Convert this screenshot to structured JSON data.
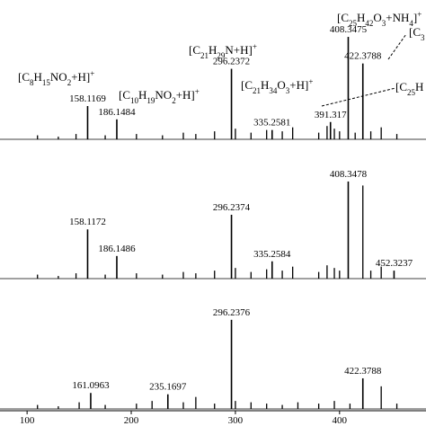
{
  "chart_data": [
    {
      "type": "spectrum",
      "xlim": [
        74,
        483
      ],
      "ylim": [
        0,
        100
      ],
      "peaks": {
        "x": [
          158.1169,
          186.1484,
          296.2372,
          335.2581,
          391.317,
          408.3475,
          422.3788
        ],
        "values": [
          25,
          15,
          53,
          7,
          13,
          77,
          57
        ]
      },
      "other_peaks": {
        "x": [
          110,
          130,
          147,
          175,
          205,
          230,
          250,
          262,
          280,
          300,
          315,
          330,
          345,
          355,
          380,
          388,
          395,
          400,
          415,
          430,
          440,
          455
        ],
        "values": [
          3,
          2,
          4,
          3,
          4,
          3,
          5,
          4,
          6,
          8,
          5,
          7,
          6,
          9,
          5,
          10,
          8,
          6,
          5,
          6,
          9,
          4
        ]
      },
      "annotations": [
        "[C8H15NO2+H]+",
        "[C10H19NO2+H]+",
        "[C21H29N+H]+",
        "[C21H34O3+H]+",
        "[C25H42O3+NH4]+",
        "[C3",
        "[C25H"
      ]
    },
    {
      "type": "spectrum",
      "xlim": [
        74,
        483
      ],
      "ylim": [
        0,
        100
      ],
      "peaks": {
        "x": [
          158.1172,
          186.1486,
          296.2374,
          335.2584,
          408.3478,
          452.3237
        ],
        "values": [
          37,
          17,
          48,
          13,
          73,
          6
        ]
      },
      "other_peaks": {
        "x": [
          110,
          130,
          147,
          175,
          205,
          230,
          250,
          262,
          280,
          300,
          315,
          330,
          345,
          355,
          380,
          388,
          395,
          400,
          422.3788,
          430,
          440
        ],
        "values": [
          3,
          2,
          4,
          3,
          4,
          3,
          5,
          4,
          6,
          8,
          5,
          7,
          6,
          9,
          5,
          10,
          8,
          6,
          70,
          6,
          9
        ]
      },
      "annotations": []
    },
    {
      "type": "spectrum",
      "xlim": [
        74,
        483
      ],
      "ylim": [
        0,
        100
      ],
      "xticks": [
        100,
        200,
        300,
        400
      ],
      "peaks": {
        "x": [
          161.0963,
          235.1697,
          296.2376,
          422.3788
        ],
        "values": [
          12,
          11,
          67,
          23
        ]
      },
      "other_peaks": {
        "x": [
          110,
          130,
          150,
          175,
          205,
          220,
          250,
          262,
          280,
          300,
          315,
          330,
          345,
          360,
          380,
          395,
          410,
          440,
          455
        ],
        "values": [
          3,
          2,
          5,
          3,
          4,
          6,
          5,
          9,
          4,
          6,
          5,
          4,
          3,
          5,
          4,
          6,
          4,
          17,
          4
        ]
      },
      "annotations": []
    }
  ]
}
